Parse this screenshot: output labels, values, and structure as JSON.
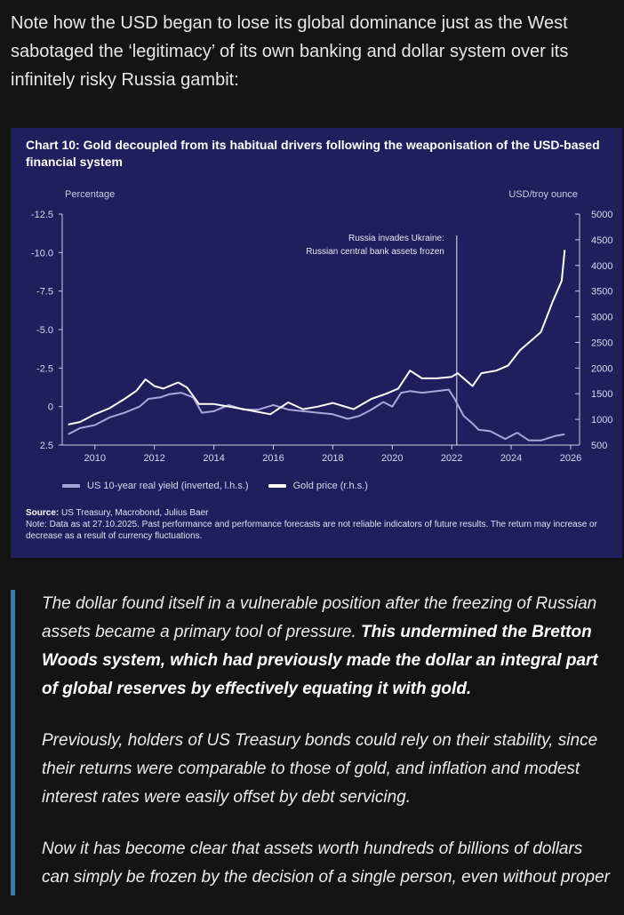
{
  "intro_text": "Note how the USD began to lose its global dominance just as the West sabotaged the ‘legitimacy’ of its own banking and dollar system over its infinitely risky Russia gambit:",
  "colors": {
    "background": "#141414",
    "chart_bg": "#1f1f5e",
    "quote_bar": "#3a7ba8",
    "yield_line": "#a9a6dc",
    "gold_line": "#ffffff"
  },
  "chart_data": {
    "type": "line",
    "title": "Chart 10: Gold decoupled from its habitual drivers following the weaponisation of the USD-based financial system",
    "left_axis_label": "Percentage",
    "right_axis_label": "USD/troy ounce",
    "left_ticks": [
      "-12.5",
      "-10.0",
      "-7.5",
      "-5.0",
      "-2.5",
      "0",
      "2.5"
    ],
    "left_tick_values": [
      -12.5,
      -10,
      -7.5,
      -5,
      -2.5,
      0,
      2.5
    ],
    "right_ticks": [
      "5000",
      "4500",
      "4000",
      "3500",
      "3000",
      "2500",
      "2000",
      "1500",
      "1000",
      "500"
    ],
    "right_tick_values": [
      5000,
      4500,
      4000,
      3500,
      3000,
      2500,
      2000,
      1500,
      1000,
      500
    ],
    "x_ticks": [
      "2010",
      "2012",
      "2014",
      "2016",
      "2018",
      "2020",
      "2022",
      "2024",
      "2026"
    ],
    "x_tick_values": [
      2010,
      2012,
      2014,
      2016,
      2018,
      2020,
      2022,
      2024,
      2026
    ],
    "xlim": [
      2008.9,
      2026.3
    ],
    "ylim_left": [
      -12.5,
      2.5
    ],
    "ylim_right": [
      500,
      5000
    ],
    "annotation": {
      "x": 2022.17,
      "line1": "Russia invades Ukraine:",
      "line2": "Russian central bank assets frozen"
    },
    "series": [
      {
        "name": "US 10-year real yield (inverted, l.h.s.)",
        "axis": "left",
        "x": [
          2009.1,
          2009.5,
          2010.0,
          2010.5,
          2011.0,
          2011.5,
          2011.8,
          2012.2,
          2012.5,
          2012.9,
          2013.3,
          2013.6,
          2014.0,
          2014.5,
          2015.0,
          2015.5,
          2016.0,
          2016.5,
          2017.0,
          2017.5,
          2018.0,
          2018.5,
          2018.9,
          2019.3,
          2019.7,
          2020.0,
          2020.3,
          2020.6,
          2021.0,
          2021.5,
          2021.9,
          2022.1,
          2022.4,
          2022.7,
          2022.9,
          2023.3,
          2023.8,
          2024.2,
          2024.6,
          2025.0,
          2025.5,
          2025.8
        ],
        "values": [
          1.8,
          1.4,
          1.2,
          0.7,
          0.4,
          0.0,
          -0.5,
          -0.6,
          -0.8,
          -0.9,
          -0.6,
          0.4,
          0.3,
          -0.1,
          0.2,
          0.2,
          -0.1,
          0.2,
          0.3,
          0.4,
          0.5,
          0.8,
          0.6,
          0.2,
          -0.3,
          0.0,
          -0.9,
          -1.0,
          -0.9,
          -1.0,
          -1.1,
          -0.5,
          0.6,
          1.1,
          1.5,
          1.6,
          2.1,
          1.7,
          2.2,
          2.2,
          1.9,
          1.8
        ]
      },
      {
        "name": "Gold price (r.h.s.)",
        "axis": "right",
        "x": [
          2009.1,
          2009.5,
          2010.0,
          2010.5,
          2011.0,
          2011.4,
          2011.7,
          2012.0,
          2012.3,
          2012.8,
          2013.1,
          2013.5,
          2014.0,
          2014.5,
          2015.0,
          2015.9,
          2016.5,
          2017.0,
          2017.5,
          2018.0,
          2018.7,
          2019.3,
          2019.8,
          2020.2,
          2020.6,
          2021.0,
          2021.5,
          2022.0,
          2022.2,
          2022.7,
          2023.0,
          2023.5,
          2023.9,
          2024.3,
          2024.7,
          2025.0,
          2025.4,
          2025.7,
          2025.8
        ],
        "values": [
          900,
          950,
          1100,
          1220,
          1400,
          1560,
          1780,
          1650,
          1600,
          1720,
          1620,
          1300,
          1300,
          1250,
          1200,
          1100,
          1330,
          1200,
          1250,
          1320,
          1200,
          1400,
          1500,
          1600,
          1950,
          1800,
          1800,
          1830,
          1900,
          1650,
          1900,
          1950,
          2050,
          2350,
          2550,
          2700,
          3300,
          3700,
          4300
        ]
      }
    ]
  },
  "legend": {
    "yield_label": "US 10-year real yield (inverted, l.h.s.)",
    "gold_label": "Gold price (r.h.s.)"
  },
  "source": {
    "label": "Source:",
    "text": "US Treasury, Macrobond, Julius Baer",
    "note": "Note: Data as at 27.10.2025. Past performance and performance forecasts are not reliable indicators of future results. The return may increase or decrease as a result of currency fluctuations."
  },
  "quote": {
    "p1_plain": "The dollar found itself in a vulnerable position after the freezing of Russian assets became a primary tool of pressure. ",
    "p1_bold": "This undermined the Bretton Woods system, which had previously made the dollar an integral part of global reserves by effectively equating it with gold.",
    "p2": "Previously, holders of US Treasury bonds could rely on their stability, since their returns were comparable to those of gold, and inflation and modest interest rates were easily offset by debt servicing.",
    "p3": "Now it has become clear that assets worth hundreds of billions of dollars can simply be frozen by the decision of a single person, even without proper"
  }
}
